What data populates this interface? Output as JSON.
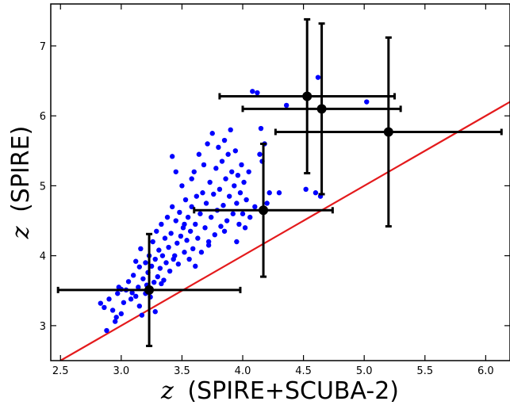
{
  "chart_data": {
    "type": "scatter",
    "title": "",
    "xlabel": "z (SPIRE+SCUBA-2)",
    "ylabel": "z (SPIRE)",
    "xlabel_symbol": "z",
    "xlabel_text": "(SPIRE+SCUBA-2)",
    "ylabel_symbol": "z",
    "ylabel_text": "(SPIRE)",
    "xlim": [
      2.42,
      6.2
    ],
    "ylim": [
      2.5,
      7.6
    ],
    "xticks": [
      2.5,
      3.0,
      3.5,
      4.0,
      4.5,
      5.0,
      5.5,
      6.0
    ],
    "xtick_labels": [
      "2.5",
      "3.0",
      "3.5",
      "4.0",
      "4.5",
      "5.0",
      "5.5",
      "6.0"
    ],
    "yticks": [
      3,
      4,
      5,
      6,
      7
    ],
    "ytick_labels": [
      "3",
      "4",
      "5",
      "6",
      "7"
    ],
    "grid": false,
    "colors": {
      "points": "#0000ff",
      "binned": "#000000",
      "line": "#e41a1c"
    },
    "reference_line": {
      "x": [
        2.5,
        6.2
      ],
      "y": [
        2.5,
        6.2
      ]
    },
    "binned_points": [
      {
        "x": 3.23,
        "y": 3.51,
        "xerr": 0.75,
        "yerr": 0.8
      },
      {
        "x": 4.17,
        "y": 4.65,
        "xerr": 0.57,
        "yerr": 0.95
      },
      {
        "x": 4.53,
        "y": 6.28,
        "xerr": 0.72,
        "yerr": 1.1
      },
      {
        "x": 4.65,
        "y": 6.1,
        "xerr": 0.65,
        "yerr": 1.22
      },
      {
        "x": 5.2,
        "y": 5.77,
        "xerr": 0.93,
        "yerr": 1.35
      }
    ],
    "points": [
      [
        2.83,
        3.32
      ],
      [
        2.86,
        3.26
      ],
      [
        2.88,
        2.93
      ],
      [
        2.9,
        3.38
      ],
      [
        2.93,
        3.22
      ],
      [
        2.95,
        3.06
      ],
      [
        2.96,
        3.12
      ],
      [
        2.97,
        3.46
      ],
      [
        2.98,
        3.55
      ],
      [
        3.0,
        3.17
      ],
      [
        3.0,
        3.52
      ],
      [
        3.02,
        3.33
      ],
      [
        3.04,
        3.51
      ],
      [
        3.06,
        3.63
      ],
      [
        3.08,
        3.38
      ],
      [
        3.09,
        3.47
      ],
      [
        3.1,
        3.72
      ],
      [
        3.12,
        3.92
      ],
      [
        3.12,
        3.42
      ],
      [
        3.14,
        3.55
      ],
      [
        3.15,
        3.84
      ],
      [
        3.16,
        4.1
      ],
      [
        3.17,
        3.15
      ],
      [
        3.18,
        3.67
      ],
      [
        3.2,
        3.46
      ],
      [
        3.2,
        3.9
      ],
      [
        3.21,
        3.58
      ],
      [
        3.22,
        3.76
      ],
      [
        3.23,
        4.0
      ],
      [
        3.24,
        3.41
      ],
      [
        3.25,
        3.85
      ],
      [
        3.26,
        4.2
      ],
      [
        3.27,
        3.62
      ],
      [
        3.28,
        3.95
      ],
      [
        3.29,
        4.35
      ],
      [
        3.3,
        3.7
      ],
      [
        3.31,
        4.08
      ],
      [
        3.32,
        3.82
      ],
      [
        3.33,
        4.45
      ],
      [
        3.34,
        4.0
      ],
      [
        3.35,
        3.65
      ],
      [
        3.36,
        4.25
      ],
      [
        3.37,
        3.9
      ],
      [
        3.38,
        4.55
      ],
      [
        3.39,
        4.12
      ],
      [
        3.4,
        3.78
      ],
      [
        3.41,
        4.32
      ],
      [
        3.42,
        4.7
      ],
      [
        3.43,
        3.95
      ],
      [
        3.44,
        4.0
      ],
      [
        3.45,
        4.5
      ],
      [
        3.46,
        4.18
      ],
      [
        3.47,
        3.88
      ],
      [
        3.48,
        4.62
      ],
      [
        3.49,
        4.28
      ],
      [
        3.5,
        5.0
      ],
      [
        3.51,
        4.4
      ],
      [
        3.52,
        4.05
      ],
      [
        3.53,
        4.8
      ],
      [
        3.54,
        4.22
      ],
      [
        3.55,
        4.55
      ],
      [
        3.56,
        3.95
      ],
      [
        3.57,
        4.35
      ],
      [
        3.58,
        4.7
      ],
      [
        3.59,
        4.1
      ],
      [
        3.6,
        5.2
      ],
      [
        3.61,
        4.45
      ],
      [
        3.62,
        4.85
      ],
      [
        3.63,
        4.25
      ],
      [
        3.64,
        5.45
      ],
      [
        3.65,
        4.6
      ],
      [
        3.66,
        4.05
      ],
      [
        3.67,
        4.9
      ],
      [
        3.68,
        5.3
      ],
      [
        3.69,
        4.4
      ],
      [
        3.7,
        4.75
      ],
      [
        3.71,
        5.6
      ],
      [
        3.72,
        4.2
      ],
      [
        3.73,
        5.05
      ],
      [
        3.74,
        4.55
      ],
      [
        3.75,
        5.75
      ],
      [
        3.76,
        4.88
      ],
      [
        3.77,
        4.3
      ],
      [
        3.78,
        5.25
      ],
      [
        3.79,
        4.65
      ],
      [
        3.8,
        5.55
      ],
      [
        3.81,
        4.95
      ],
      [
        3.82,
        4.42
      ],
      [
        3.83,
        5.35
      ],
      [
        3.84,
        4.72
      ],
      [
        3.85,
        5.65
      ],
      [
        3.86,
        5.1
      ],
      [
        3.87,
        4.5
      ],
      [
        3.88,
        5.45
      ],
      [
        3.89,
        4.85
      ],
      [
        3.9,
        5.8
      ],
      [
        3.91,
        5.2
      ],
      [
        3.92,
        4.6
      ],
      [
        3.93,
        5.0
      ],
      [
        3.94,
        5.5
      ],
      [
        3.95,
        4.75
      ],
      [
        3.96,
        5.15
      ],
      [
        3.97,
        4.45
      ],
      [
        3.98,
        4.9
      ],
      [
        3.99,
        5.3
      ],
      [
        4.0,
        4.6
      ],
      [
        4.01,
        5.05
      ],
      [
        4.02,
        4.4
      ],
      [
        4.03,
        4.8
      ],
      [
        4.05,
        5.2
      ],
      [
        4.06,
        4.55
      ],
      [
        4.08,
        6.35
      ],
      [
        4.1,
        4.7
      ],
      [
        4.12,
        6.33
      ],
      [
        4.14,
        5.45
      ],
      [
        4.15,
        5.82
      ],
      [
        4.16,
        5.35
      ],
      [
        4.18,
        5.6
      ],
      [
        4.2,
        4.75
      ],
      [
        4.22,
        4.9
      ],
      [
        4.3,
        4.9
      ],
      [
        4.36,
        6.15
      ],
      [
        4.52,
        4.95
      ],
      [
        4.6,
        4.9
      ],
      [
        4.62,
        6.55
      ],
      [
        4.64,
        4.85
      ],
      [
        5.02,
        6.2
      ],
      [
        3.42,
        5.42
      ],
      [
        3.45,
        5.2
      ],
      [
        3.58,
        5.1
      ],
      [
        3.61,
        3.85
      ],
      [
        3.33,
        3.6
      ],
      [
        3.28,
        3.2
      ],
      [
        3.15,
        3.28
      ],
      [
        3.52,
        4.45
      ],
      [
        3.72,
        4.15
      ],
      [
        3.85,
        4.35
      ],
      [
        3.95,
        4.2
      ]
    ]
  }
}
